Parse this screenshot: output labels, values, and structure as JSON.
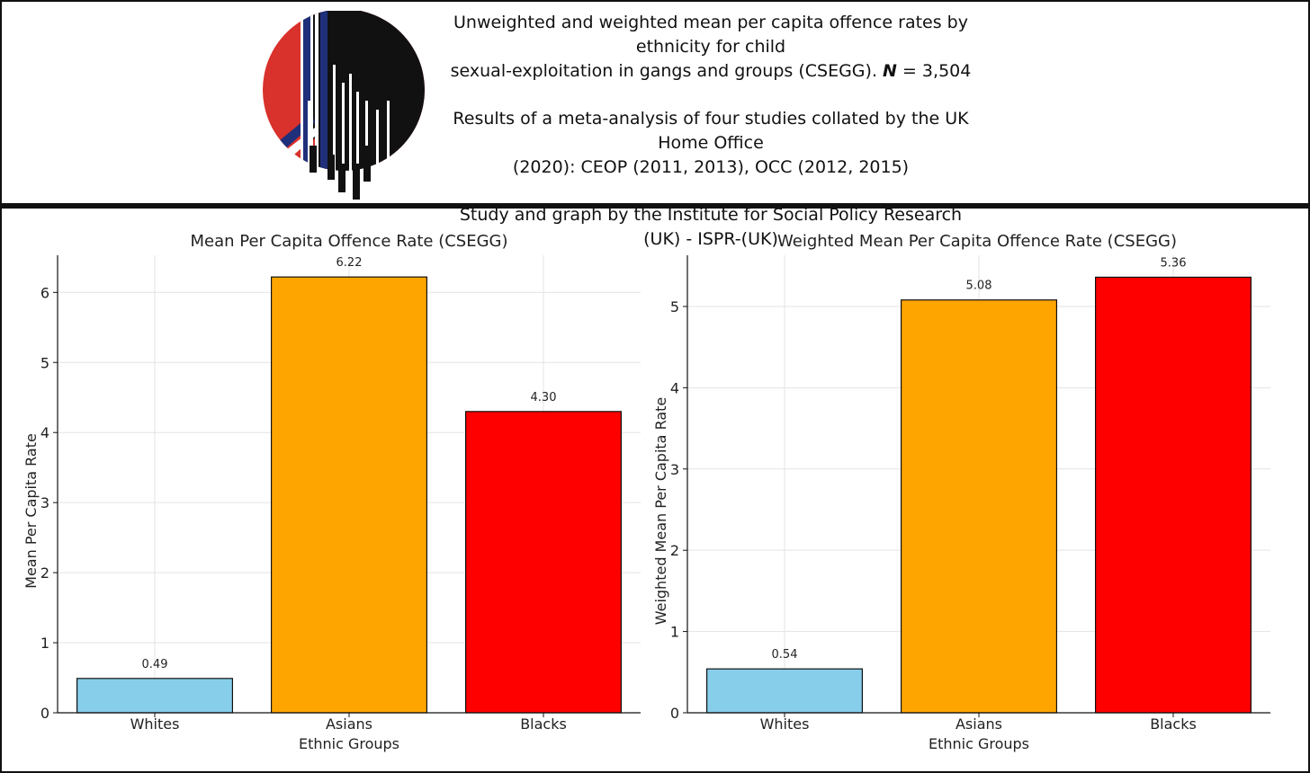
{
  "header": {
    "title_line1": "Unweighted and weighted mean per capita offence rates by ethnicity for child",
    "title_line2_prefix": "sexual-exploitation in gangs and groups (CSEGG). ",
    "n_symbol": "N",
    "n_value": " = 3,504",
    "results_line1": "Results of a meta-analysis of four studies collated by the UK Home Office",
    "results_line2": "(2020): CEOP (2011, 2013), OCC (2012, 2015)",
    "credit": "Study and graph by the Institute for Social Policy Research (UK) - ISPR-(UK)"
  },
  "logo": {
    "icon": "ispr-logo-icon",
    "colors": [
      "#d9312b",
      "#1f2f7a",
      "#111111",
      "#ffffff"
    ]
  },
  "chart_data": [
    {
      "type": "bar",
      "title": "Mean Per Capita Offence Rate (CSEGG)",
      "categories": [
        "Whites",
        "Asians",
        "Blacks"
      ],
      "values": [
        0.49,
        6.22,
        4.3
      ],
      "value_labels": [
        "0.49",
        "6.22",
        "4.30"
      ],
      "colors": [
        "#87ceeb",
        "#ffa500",
        "#ff0000"
      ],
      "xlabel": "Ethnic Groups",
      "ylabel": "Mean Per Capita Rate",
      "ylim": [
        0,
        6.53
      ],
      "yticks": [
        0,
        1,
        2,
        3,
        4,
        5,
        6
      ],
      "grid": true
    },
    {
      "type": "bar",
      "title": "Weighted Mean Per Capita Offence Rate (CSEGG)",
      "categories": [
        "Whites",
        "Asians",
        "Blacks"
      ],
      "values": [
        0.54,
        5.08,
        5.36
      ],
      "value_labels": [
        "0.54",
        "5.08",
        "5.36"
      ],
      "colors": [
        "#87ceeb",
        "#ffa500",
        "#ff0000"
      ],
      "xlabel": "Ethnic Groups",
      "ylabel": "Weighted Mean Per Capita Rate",
      "ylim": [
        0,
        5.63
      ],
      "yticks": [
        0,
        1,
        2,
        3,
        4,
        5
      ],
      "grid": true
    }
  ]
}
